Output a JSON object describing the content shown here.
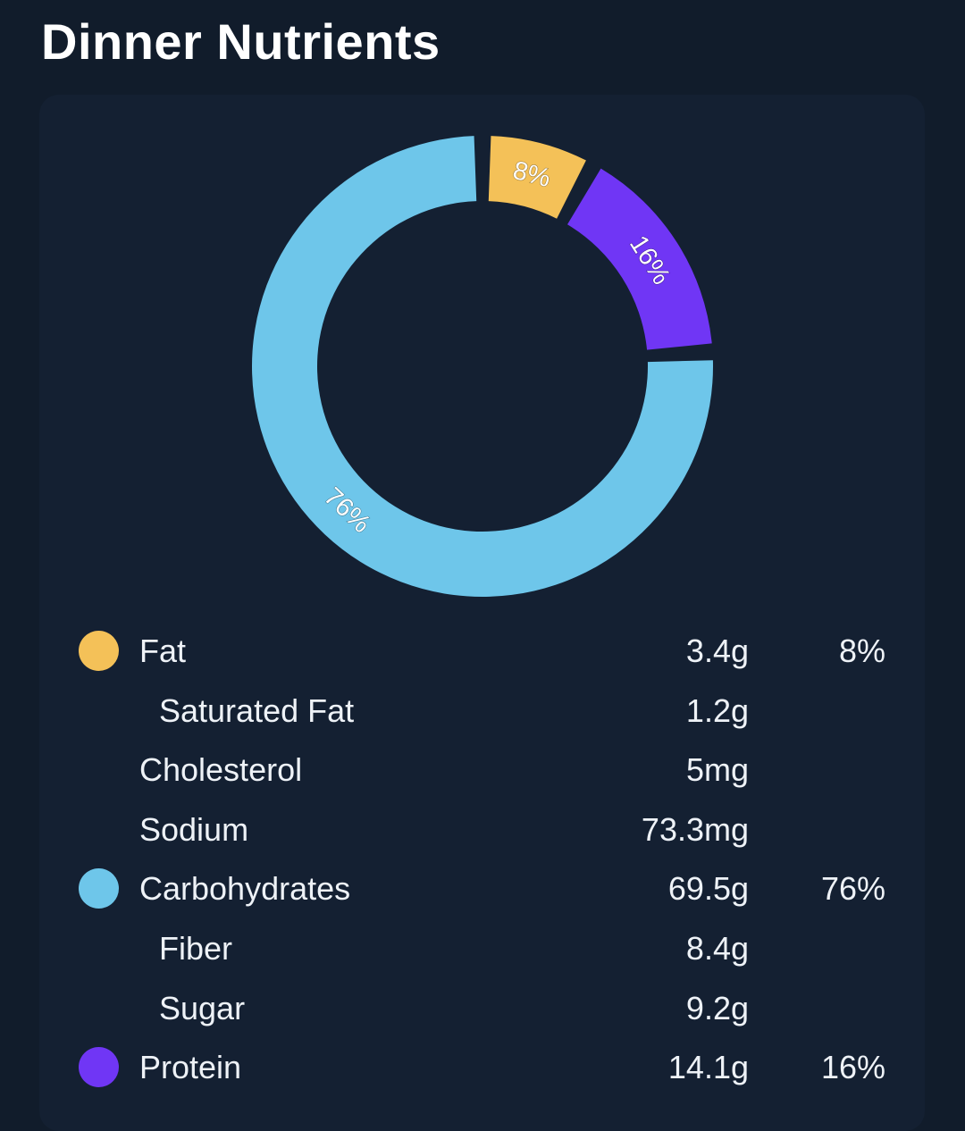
{
  "page": {
    "title": "Dinner Nutrients"
  },
  "colors": {
    "background": "#111c2b",
    "card": "#142032",
    "fat": "#f4c158",
    "carbohydrates": "#6ec6ea",
    "protein": "#7036f5"
  },
  "chart_data": {
    "type": "pie",
    "style": "donut",
    "categories": [
      "Fat",
      "Protein",
      "Carbohydrates"
    ],
    "values": [
      8,
      16,
      76
    ],
    "labels": [
      "8%",
      "16%",
      "76%"
    ],
    "colors": [
      "#f4c158",
      "#7036f5",
      "#6ec6ea"
    ]
  },
  "nutrients": [
    {
      "name": "Fat",
      "amount": "3.4g",
      "percent": "8%",
      "indent": false,
      "color": "#f4c158"
    },
    {
      "name": "Saturated Fat",
      "amount": "1.2g",
      "percent": "",
      "indent": true,
      "color": ""
    },
    {
      "name": "Cholesterol",
      "amount": "5mg",
      "percent": "",
      "indent": false,
      "color": ""
    },
    {
      "name": "Sodium",
      "amount": "73.3mg",
      "percent": "",
      "indent": false,
      "color": ""
    },
    {
      "name": "Carbohydrates",
      "amount": "69.5g",
      "percent": "76%",
      "indent": false,
      "color": "#6ec6ea"
    },
    {
      "name": "Fiber",
      "amount": "8.4g",
      "percent": "",
      "indent": true,
      "color": ""
    },
    {
      "name": "Sugar",
      "amount": "9.2g",
      "percent": "",
      "indent": true,
      "color": ""
    },
    {
      "name": "Protein",
      "amount": "14.1g",
      "percent": "16%",
      "indent": false,
      "color": "#7036f5"
    }
  ]
}
